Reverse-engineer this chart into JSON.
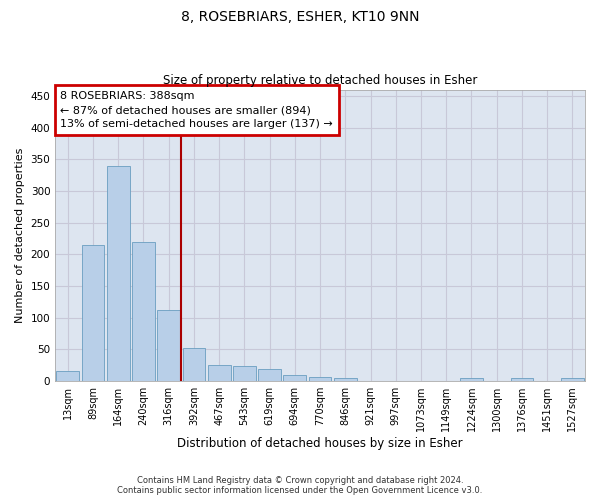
{
  "title": "8, ROSEBRIARS, ESHER, KT10 9NN",
  "subtitle": "Size of property relative to detached houses in Esher",
  "xlabel": "Distribution of detached houses by size in Esher",
  "ylabel": "Number of detached properties",
  "categories": [
    "13sqm",
    "89sqm",
    "164sqm",
    "240sqm",
    "316sqm",
    "392sqm",
    "467sqm",
    "543sqm",
    "619sqm",
    "694sqm",
    "770sqm",
    "846sqm",
    "921sqm",
    "997sqm",
    "1073sqm",
    "1149sqm",
    "1224sqm",
    "1300sqm",
    "1376sqm",
    "1451sqm",
    "1527sqm"
  ],
  "values": [
    15,
    215,
    340,
    220,
    112,
    52,
    25,
    24,
    19,
    9,
    6,
    4,
    0,
    0,
    0,
    0,
    4,
    0,
    4,
    0,
    4
  ],
  "bar_color": "#b8cfe8",
  "bar_edge_color": "#6a9ec0",
  "vline_x": 4.5,
  "vline_color": "#aa0000",
  "annotation_text_line1": "8 ROSEBRIARS: 388sqm",
  "annotation_text_line2": "← 87% of detached houses are smaller (894)",
  "annotation_text_line3": "13% of semi-detached houses are larger (137) →",
  "annotation_box_color": "#ffffff",
  "annotation_box_edge_color": "#cc0000",
  "footer_line1": "Contains HM Land Registry data © Crown copyright and database right 2024.",
  "footer_line2": "Contains public sector information licensed under the Open Government Licence v3.0.",
  "grid_color": "#c8c8d8",
  "background_color": "#dde5f0",
  "ylim": [
    0,
    460
  ],
  "yticks": [
    0,
    50,
    100,
    150,
    200,
    250,
    300,
    350,
    400,
    450
  ],
  "title_fontsize": 10,
  "subtitle_fontsize": 8.5,
  "tick_fontsize": 7,
  "ylabel_fontsize": 8,
  "xlabel_fontsize": 8.5
}
